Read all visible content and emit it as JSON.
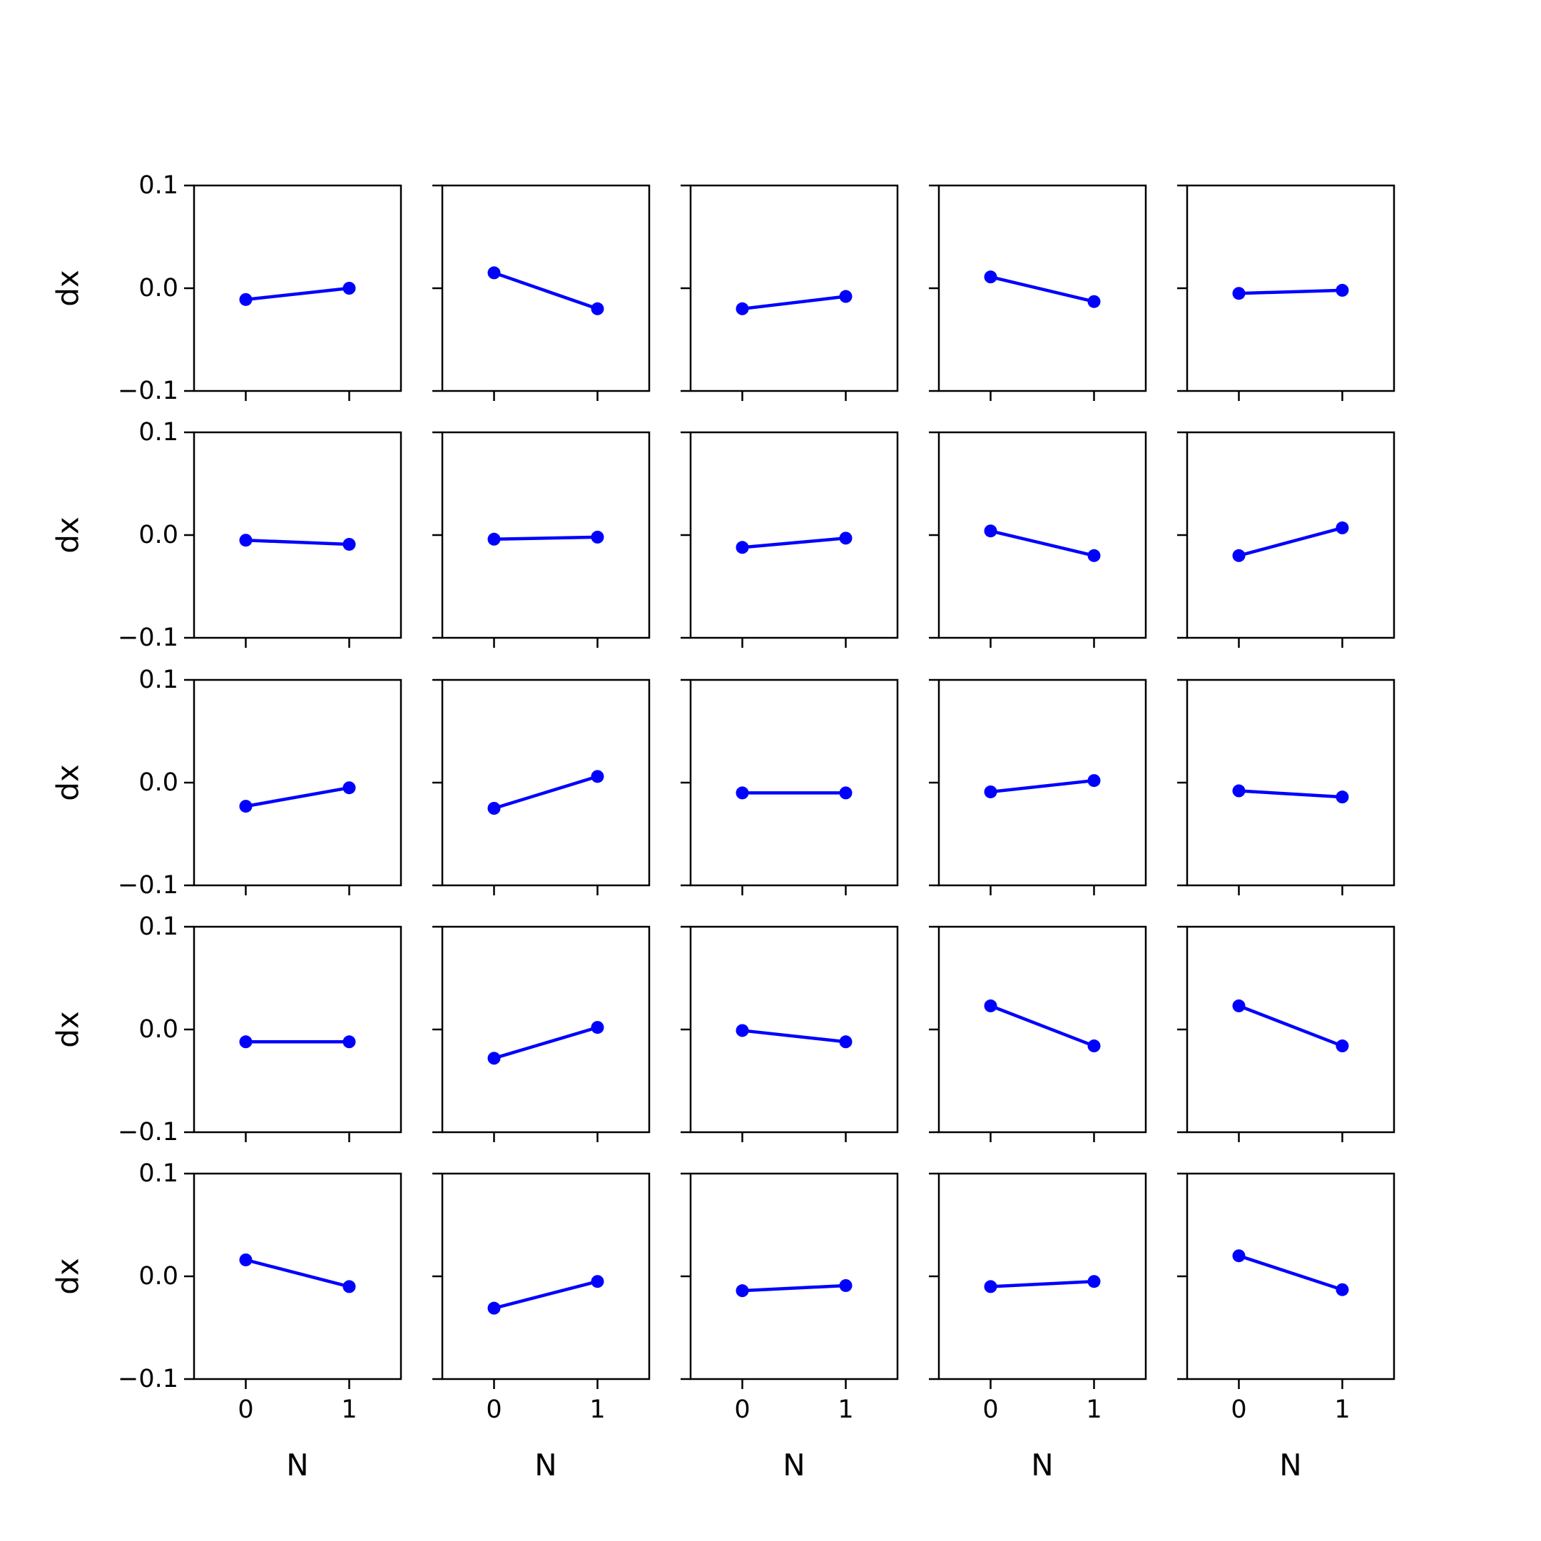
{
  "chart_data": {
    "type": "line",
    "layout": "5x5 grid of small multiples",
    "xlabel": "N",
    "ylabel": "dx",
    "xticks": [
      "0",
      "1"
    ],
    "yticks": [
      "0.1",
      "0.0",
      "−0.1"
    ],
    "xlim": [
      -0.5,
      1.5
    ],
    "ylim": [
      -0.1,
      0.1
    ],
    "marker": "circle",
    "line_color": "#0000ff",
    "grid": false,
    "panels": [
      {
        "x": [
          0,
          1
        ],
        "y": [
          -0.011,
          0.0
        ]
      },
      {
        "x": [
          0,
          1
        ],
        "y": [
          0.015,
          -0.02
        ]
      },
      {
        "x": [
          0,
          1
        ],
        "y": [
          -0.02,
          -0.008
        ]
      },
      {
        "x": [
          0,
          1
        ],
        "y": [
          0.011,
          -0.013
        ]
      },
      {
        "x": [
          0,
          1
        ],
        "y": [
          -0.005,
          -0.002
        ]
      },
      {
        "x": [
          0,
          1
        ],
        "y": [
          -0.005,
          -0.009
        ]
      },
      {
        "x": [
          0,
          1
        ],
        "y": [
          -0.004,
          -0.002
        ]
      },
      {
        "x": [
          0,
          1
        ],
        "y": [
          -0.012,
          -0.003
        ]
      },
      {
        "x": [
          0,
          1
        ],
        "y": [
          0.004,
          -0.02
        ]
      },
      {
        "x": [
          0,
          1
        ],
        "y": [
          -0.02,
          0.007
        ]
      },
      {
        "x": [
          0,
          1
        ],
        "y": [
          -0.023,
          -0.005
        ]
      },
      {
        "x": [
          0,
          1
        ],
        "y": [
          -0.025,
          0.006
        ]
      },
      {
        "x": [
          0,
          1
        ],
        "y": [
          -0.01,
          -0.01
        ]
      },
      {
        "x": [
          0,
          1
        ],
        "y": [
          -0.009,
          0.002
        ]
      },
      {
        "x": [
          0,
          1
        ],
        "y": [
          -0.008,
          -0.014
        ]
      },
      {
        "x": [
          0,
          1
        ],
        "y": [
          -0.012,
          -0.012
        ]
      },
      {
        "x": [
          0,
          1
        ],
        "y": [
          -0.028,
          0.002
        ]
      },
      {
        "x": [
          0,
          1
        ],
        "y": [
          -0.001,
          -0.012
        ]
      },
      {
        "x": [
          0,
          1
        ],
        "y": [
          0.023,
          -0.016
        ]
      },
      {
        "x": [
          0,
          1
        ],
        "y": [
          0.023,
          -0.016
        ]
      },
      {
        "x": [
          0,
          1
        ],
        "y": [
          0.016,
          -0.01
        ]
      },
      {
        "x": [
          0,
          1
        ],
        "y": [
          -0.031,
          -0.005
        ]
      },
      {
        "x": [
          0,
          1
        ],
        "y": [
          -0.014,
          -0.009
        ]
      },
      {
        "x": [
          0,
          1
        ],
        "y": [
          -0.01,
          -0.005
        ]
      },
      {
        "x": [
          0,
          1
        ],
        "y": [
          0.02,
          -0.013
        ]
      }
    ]
  }
}
